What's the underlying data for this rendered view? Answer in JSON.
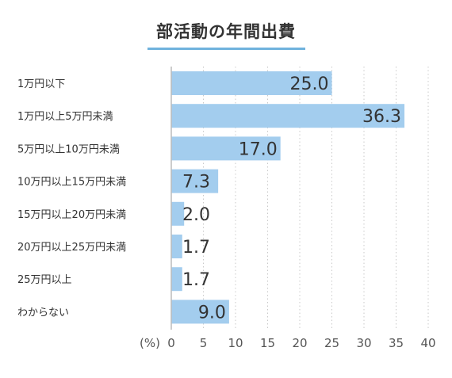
{
  "title": "部活動の年間出費",
  "chart_data": {
    "type": "bar",
    "orientation": "horizontal",
    "title": "部活動の年間出費",
    "unit_label": "(%)",
    "categories": [
      "1万円以下",
      "1万円以上5万円未満",
      "5万円以上10万円未満",
      "10万円以上15万円未満",
      "15万円以上20万円未満",
      "20万円以上25万円未満",
      "25万円以上",
      "わからない"
    ],
    "values": [
      25.0,
      36.3,
      17.0,
      7.3,
      2.0,
      1.7,
      1.7,
      9.0
    ],
    "data_labels": [
      "25.0",
      "36.3",
      "17.0",
      "7.3",
      "2.0",
      "1.7",
      "1.7",
      "9.0"
    ],
    "xlim": [
      0,
      40
    ],
    "xticks": [
      "0",
      "5",
      "10",
      "15",
      "20",
      "25",
      "30",
      "35",
      "40"
    ],
    "grid": "vertical-dotted",
    "bar_color": "#a3cdee"
  }
}
